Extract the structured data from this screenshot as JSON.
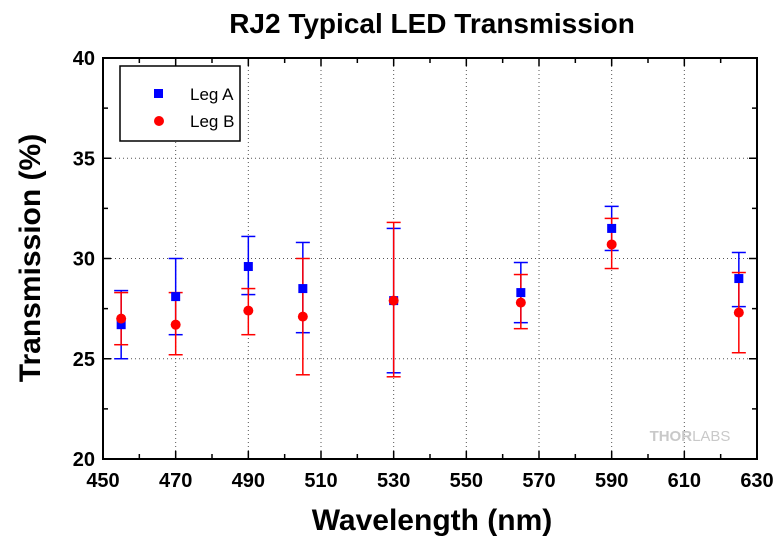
{
  "chart_data": {
    "type": "scatter",
    "title": "RJ2 Typical LED Transmission",
    "xlabel": "Wavelength (nm)",
    "ylabel": "Transmission (%)",
    "xlim": [
      450,
      630
    ],
    "ylim": [
      20,
      40
    ],
    "xticks": [
      450,
      470,
      490,
      510,
      530,
      550,
      570,
      590,
      610,
      630
    ],
    "yticks": [
      20,
      25,
      30,
      35,
      40
    ],
    "grid": true,
    "legend_position": "top-left",
    "watermark": {
      "prefix": "THOR",
      "suffix": "LABS"
    },
    "series": [
      {
        "name": "Leg A",
        "marker": "square",
        "color": "#0000ff",
        "points": [
          {
            "x": 455,
            "y": 26.7,
            "err_low": 25.0,
            "err_high": 28.4
          },
          {
            "x": 470,
            "y": 28.1,
            "err_low": 26.2,
            "err_high": 30.0
          },
          {
            "x": 490,
            "y": 29.6,
            "err_low": 28.2,
            "err_high": 31.1
          },
          {
            "x": 505,
            "y": 28.5,
            "err_low": 26.3,
            "err_high": 30.8
          },
          {
            "x": 530,
            "y": 27.9,
            "err_low": 24.3,
            "err_high": 31.5
          },
          {
            "x": 565,
            "y": 28.3,
            "err_low": 26.8,
            "err_high": 29.8
          },
          {
            "x": 590,
            "y": 31.5,
            "err_low": 30.4,
            "err_high": 32.6
          },
          {
            "x": 625,
            "y": 29.0,
            "err_low": 27.6,
            "err_high": 30.3
          }
        ]
      },
      {
        "name": "Leg B",
        "marker": "circle",
        "color": "#ff0000",
        "points": [
          {
            "x": 455,
            "y": 27.0,
            "err_low": 25.7,
            "err_high": 28.3
          },
          {
            "x": 470,
            "y": 26.7,
            "err_low": 25.2,
            "err_high": 28.3
          },
          {
            "x": 490,
            "y": 27.4,
            "err_low": 26.2,
            "err_high": 28.5
          },
          {
            "x": 505,
            "y": 27.1,
            "err_low": 24.2,
            "err_high": 30.0
          },
          {
            "x": 530,
            "y": 27.9,
            "err_low": 24.1,
            "err_high": 31.8
          },
          {
            "x": 565,
            "y": 27.8,
            "err_low": 26.5,
            "err_high": 29.2
          },
          {
            "x": 590,
            "y": 30.7,
            "err_low": 29.5,
            "err_high": 32.0
          },
          {
            "x": 625,
            "y": 27.3,
            "err_low": 25.3,
            "err_high": 29.3
          }
        ]
      }
    ]
  }
}
